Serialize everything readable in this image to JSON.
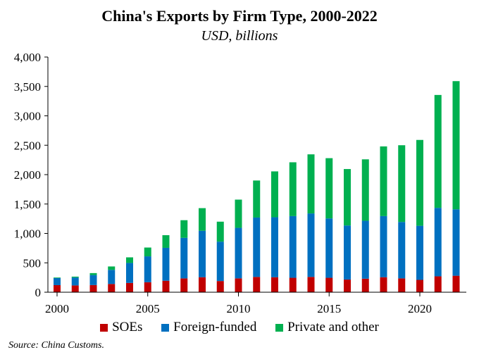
{
  "chart_data": {
    "type": "bar",
    "stacked": true,
    "title": "China's Exports by Firm Type, 2000-2022",
    "subtitle": "USD, billions",
    "x": [
      2000,
      2001,
      2002,
      2003,
      2004,
      2005,
      2006,
      2007,
      2008,
      2009,
      2010,
      2011,
      2012,
      2013,
      2014,
      2015,
      2016,
      2017,
      2018,
      2019,
      2020,
      2021,
      2022
    ],
    "x_tick_labels": [
      "2000",
      "2005",
      "2010",
      "2015",
      "2020"
    ],
    "y_tick_labels": [
      "0",
      "500",
      "1,000",
      "1,500",
      "2,000",
      "2,500",
      "3,000",
      "3,500",
      "4,000"
    ],
    "ylim": [
      0,
      4000
    ],
    "series": [
      {
        "name": "SOEs",
        "color": "#c00000",
        "values": [
          120,
          115,
          122,
          140,
          158,
          170,
          195,
          235,
          255,
          190,
          235,
          260,
          255,
          245,
          260,
          245,
          215,
          230,
          255,
          235,
          210,
          270,
          280
        ]
      },
      {
        "name": "Foreign-funded",
        "color": "#0070c0",
        "values": [
          120,
          135,
          170,
          240,
          340,
          440,
          560,
          690,
          790,
          670,
          860,
          1010,
          1020,
          1050,
          1080,
          1010,
          920,
          985,
          1040,
          960,
          920,
          1165,
          1130
        ]
      },
      {
        "name": "Private and other",
        "color": "#00b050",
        "values": [
          10,
          15,
          33,
          58,
          95,
          150,
          215,
          300,
          385,
          340,
          480,
          630,
          780,
          915,
          1005,
          1025,
          960,
          1045,
          1185,
          1305,
          1460,
          1920,
          2180
        ]
      }
    ],
    "legend_position": "bottom",
    "grid": false,
    "source": "Source: China Customs."
  }
}
